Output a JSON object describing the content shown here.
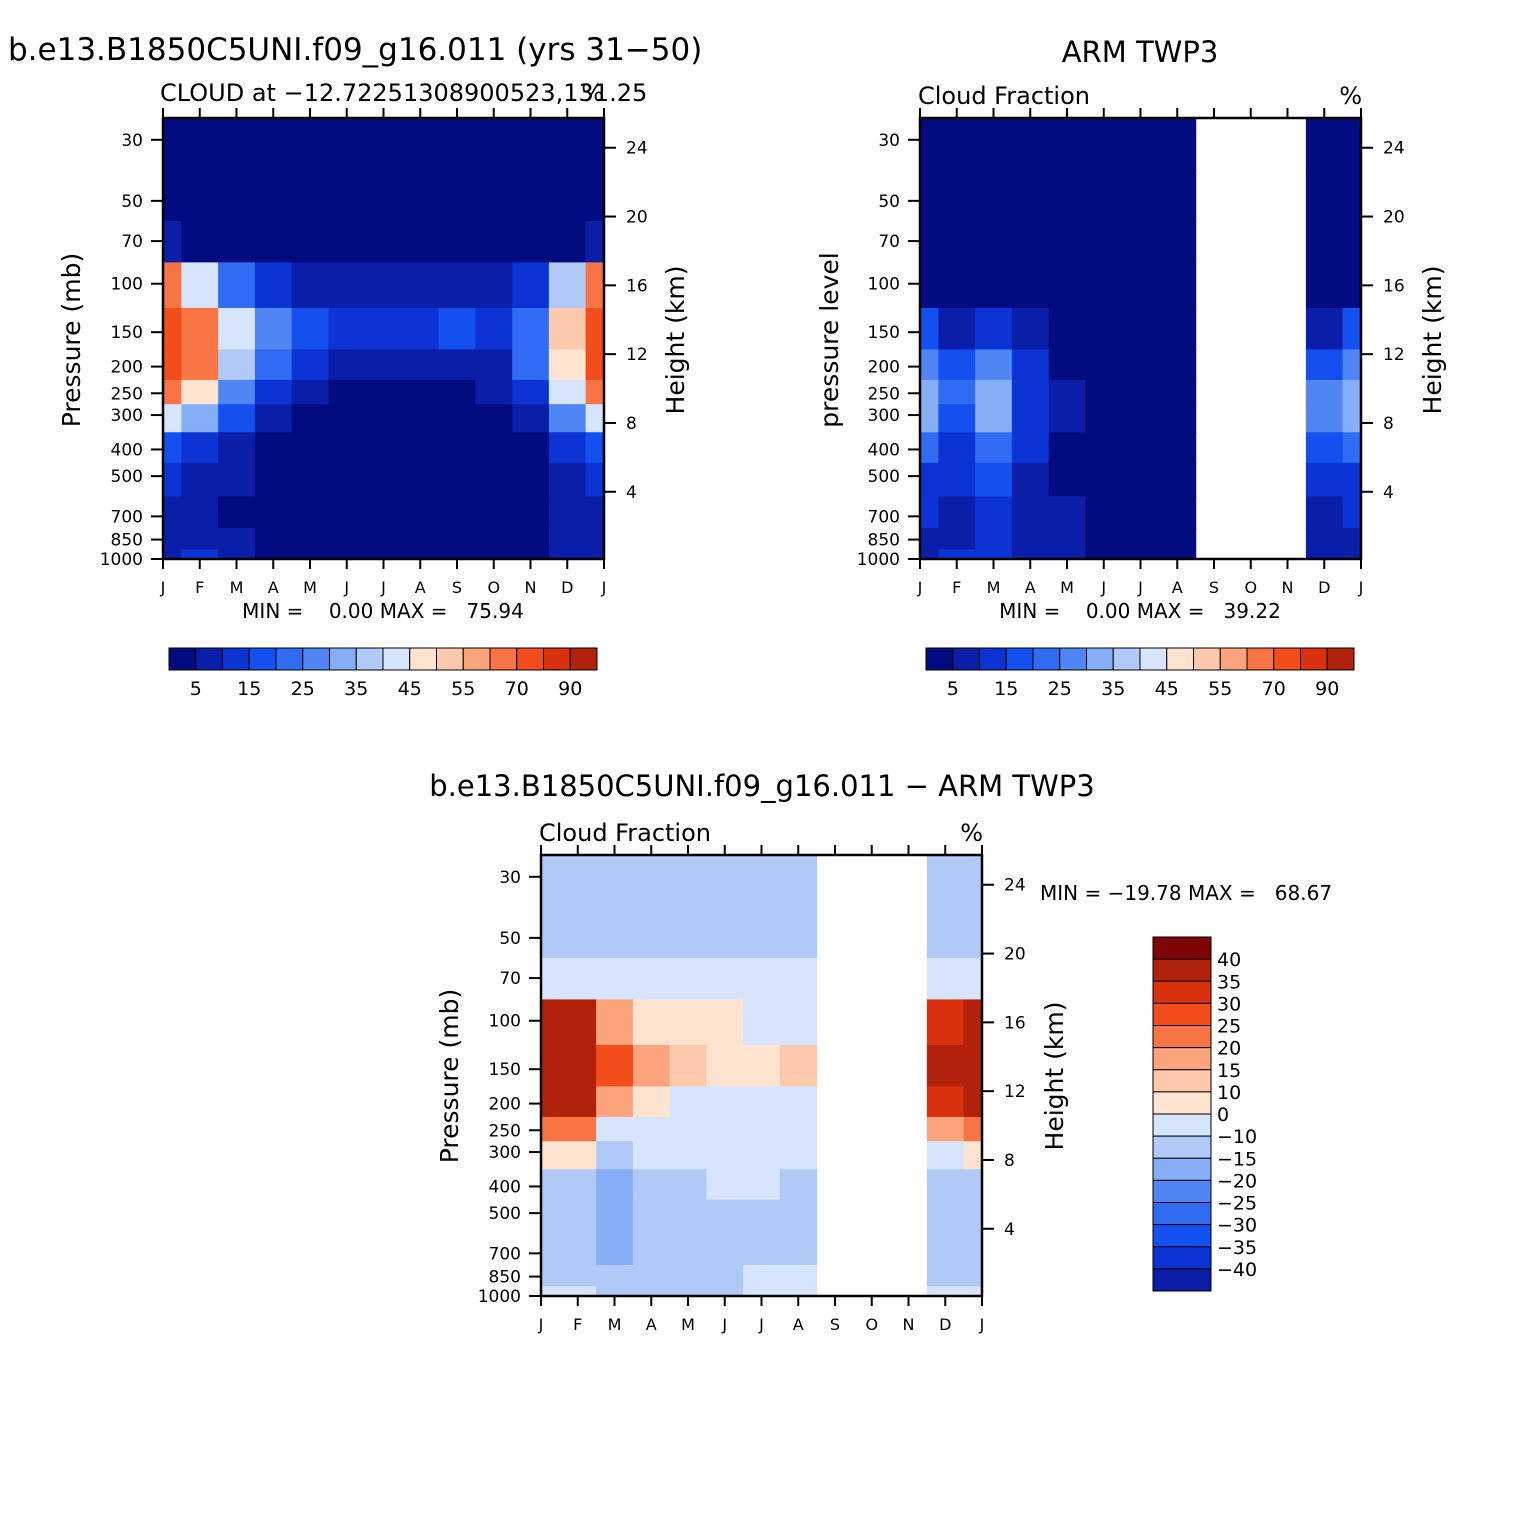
{
  "page": {
    "top_left_title": "b.e13.B1850C5UNI.f09_g16.011 (yrs 31−50)",
    "top_right_title": "ARM TWP3",
    "bottom_title": "b.e13.B1850C5UNI.f09_g16.011 − ARM TWP3"
  },
  "panels": [
    {
      "id": "model",
      "subtitle_left": "CLOUD at −12.72251308900523,131.25",
      "subtitle_right": "%",
      "ylabel": "Pressure (mb)",
      "y2label": "Height (km)",
      "minmax": "MIN =    0.00 MAX =   75.94"
    },
    {
      "id": "obs",
      "subtitle_left": "Cloud Fraction",
      "subtitle_right": "%",
      "ylabel": "pressure level",
      "y2label": "Height (km)",
      "minmax": "MIN =    0.00 MAX =   39.22"
    },
    {
      "id": "diff",
      "subtitle_left": "Cloud Fraction",
      "subtitle_right": "%",
      "ylabel": "Pressure (mb)",
      "y2label": "Height (km)",
      "minmax": "MIN = −19.78 MAX =   68.67"
    }
  ],
  "chart_data": [
    {
      "type": "heatmap",
      "title": "b.e13.B1850C5UNI.f09_g16.011 (yrs 31−50)",
      "subtitle": "CLOUD at −12.72251308900523,131.25",
      "units": "%",
      "xlabel": "",
      "ylabel": "Pressure (mb)",
      "y2label": "Height (km)",
      "x_ticks": [
        "J",
        "F",
        "M",
        "A",
        "M",
        "J",
        "J",
        "A",
        "S",
        "O",
        "N",
        "D",
        "J"
      ],
      "y_ticks": [
        30,
        50,
        70,
        100,
        150,
        200,
        250,
        300,
        400,
        500,
        700,
        850,
        1000
      ],
      "y2_ticks": [
        4,
        8,
        12,
        16,
        20,
        24
      ],
      "ylim": [
        1000,
        25
      ],
      "y_scale": "log",
      "levels": [
        5,
        10,
        15,
        20,
        25,
        30,
        35,
        40,
        45,
        50,
        55,
        60,
        70,
        80,
        90
      ],
      "colorbar_labels": [
        "5",
        "15",
        "25",
        "35",
        "45",
        "55",
        "70",
        "90"
      ],
      "colors": [
        "#020b80",
        "#0a1ea8",
        "#0c34d4",
        "#1450f0",
        "#2f6cf2",
        "#4f86f4",
        "#86aef7",
        "#b1c9f7",
        "#d6e5fb",
        "#fde3d0",
        "#fcc9ac",
        "#fba47c",
        "#f97444",
        "#f24d1a",
        "#d9300d",
        "#b2210b",
        "#7e0505"
      ],
      "columns": [
        "Jan",
        "Feb",
        "Mar",
        "Apr",
        "May",
        "Jun",
        "Jul",
        "Aug",
        "Sep",
        "Oct",
        "Nov",
        "Dec",
        "Jan"
      ],
      "rows_hPa": [
        30,
        50,
        70,
        100,
        150,
        200,
        250,
        300,
        400,
        500,
        700,
        850,
        1000
      ],
      "values": [
        [
          1,
          1,
          1,
          1,
          1,
          1,
          1,
          1,
          1,
          1,
          1,
          1,
          1
        ],
        [
          1,
          1,
          1,
          1,
          1,
          1,
          1,
          1,
          1,
          1,
          1,
          1,
          1
        ],
        [
          6,
          4,
          2,
          1,
          1,
          1,
          1,
          1,
          1,
          1,
          1,
          3,
          6
        ],
        [
          62,
          40,
          20,
          10,
          7,
          8,
          6,
          7,
          8,
          8,
          12,
          35,
          62
        ],
        [
          72,
          60,
          40,
          25,
          15,
          12,
          10,
          14,
          15,
          14,
          22,
          50,
          72
        ],
        [
          72,
          60,
          38,
          22,
          12,
          9,
          6,
          8,
          9,
          9,
          20,
          48,
          72
        ],
        [
          60,
          45,
          28,
          14,
          7,
          3,
          2,
          3,
          4,
          5,
          12,
          40,
          60
        ],
        [
          40,
          30,
          18,
          9,
          4,
          2,
          1,
          2,
          2,
          3,
          9,
          28,
          40
        ],
        [
          18,
          12,
          7,
          3,
          1,
          1,
          1,
          1,
          1,
          1,
          3,
          12,
          18
        ],
        [
          10,
          8,
          5,
          2,
          1,
          1,
          1,
          1,
          1,
          1,
          2,
          8,
          10
        ],
        [
          6,
          6,
          3,
          2,
          1,
          1,
          1,
          1,
          1,
          1,
          2,
          5,
          6
        ],
        [
          7,
          8,
          6,
          3,
          1,
          1,
          1,
          1,
          1,
          1,
          2,
          6,
          7
        ],
        [
          9,
          11,
          8,
          4,
          2,
          2,
          2,
          2,
          2,
          2,
          3,
          7,
          9
        ]
      ],
      "min": 0.0,
      "max": 75.94
    },
    {
      "type": "heatmap",
      "title": "ARM TWP3",
      "subtitle": "Cloud Fraction",
      "units": "%",
      "xlabel": "",
      "ylabel": "pressure level",
      "y2label": "Height (km)",
      "x_ticks": [
        "J",
        "F",
        "M",
        "A",
        "M",
        "J",
        "J",
        "A",
        "S",
        "O",
        "N",
        "D",
        "J"
      ],
      "y_ticks": [
        30,
        50,
        70,
        100,
        150,
        200,
        250,
        300,
        400,
        500,
        700,
        850,
        1000
      ],
      "y2_ticks": [
        4,
        8,
        12,
        16,
        20,
        24
      ],
      "ylim": [
        1000,
        25
      ],
      "y_scale": "log",
      "missing_months": [
        "Sep-Nov"
      ],
      "levels": [
        5,
        10,
        15,
        20,
        25,
        30,
        35,
        40,
        45,
        50,
        55,
        60,
        70,
        80,
        90
      ],
      "colorbar_labels": [
        "5",
        "15",
        "25",
        "35",
        "45",
        "55",
        "70",
        "90"
      ],
      "colors": [
        "#020b80",
        "#0a1ea8",
        "#0c34d4",
        "#1450f0",
        "#2f6cf2",
        "#4f86f4",
        "#86aef7",
        "#b1c9f7",
        "#d6e5fb",
        "#fde3d0",
        "#fcc9ac",
        "#fba47c",
        "#f97444",
        "#f24d1a",
        "#d9300d",
        "#b2210b",
        "#7e0505"
      ],
      "columns": [
        "Jan",
        "Feb",
        "Mar",
        "Apr",
        "May",
        "Jun",
        "Jul",
        "Aug",
        "Sep",
        "Oct",
        "Nov",
        "Dec",
        "Jan"
      ],
      "rows_hPa": [
        30,
        50,
        70,
        100,
        150,
        200,
        250,
        300,
        400,
        500,
        700,
        850,
        1000
      ],
      "values": [
        [
          1,
          1,
          1,
          1,
          1,
          1,
          1,
          1,
          null,
          null,
          null,
          1,
          1
        ],
        [
          1,
          1,
          1,
          1,
          1,
          1,
          1,
          1,
          null,
          null,
          null,
          1,
          1
        ],
        [
          1,
          1,
          1,
          1,
          1,
          1,
          1,
          1,
          null,
          null,
          null,
          1,
          1
        ],
        [
          4,
          3,
          4,
          2,
          1,
          1,
          1,
          1,
          null,
          null,
          null,
          2,
          4
        ],
        [
          15,
          9,
          12,
          7,
          2,
          1,
          1,
          1,
          null,
          null,
          null,
          8,
          15
        ],
        [
          28,
          17,
          25,
          12,
          4,
          1,
          1,
          1,
          null,
          null,
          null,
          18,
          28
        ],
        [
          34,
          20,
          34,
          14,
          5,
          1,
          1,
          1,
          null,
          null,
          null,
          25,
          34
        ],
        [
          32,
          19,
          32,
          13,
          5,
          1,
          1,
          1,
          null,
          null,
          null,
          26,
          32
        ],
        [
          22,
          14,
          24,
          11,
          4,
          1,
          1,
          1,
          null,
          null,
          null,
          18,
          22
        ],
        [
          14,
          11,
          18,
          9,
          4,
          1,
          1,
          1,
          null,
          null,
          null,
          12,
          14
        ],
        [
          10,
          9,
          14,
          8,
          5,
          2,
          1,
          1,
          null,
          null,
          null,
          7,
          10
        ],
        [
          9,
          9,
          13,
          9,
          6,
          3,
          1,
          1,
          null,
          null,
          null,
          5,
          9
        ],
        [
          9,
          10,
          12,
          9,
          6,
          3,
          2,
          1,
          null,
          null,
          null,
          5,
          9
        ]
      ],
      "min": 0.0,
      "max": 39.22
    },
    {
      "type": "heatmap",
      "title": "b.e13.B1850C5UNI.f09_g16.011 − ARM TWP3",
      "subtitle": "Cloud Fraction",
      "units": "%",
      "xlabel": "",
      "ylabel": "Pressure (mb)",
      "y2label": "Height (km)",
      "x_ticks": [
        "J",
        "F",
        "M",
        "A",
        "M",
        "J",
        "J",
        "A",
        "S",
        "O",
        "N",
        "D",
        "J"
      ],
      "y_ticks": [
        30,
        50,
        70,
        100,
        150,
        200,
        250,
        300,
        400,
        500,
        700,
        850,
        1000
      ],
      "y2_ticks": [
        4,
        8,
        12,
        16,
        20,
        24
      ],
      "ylim": [
        1000,
        25
      ],
      "y_scale": "log",
      "missing_months": [
        "Sep-Nov"
      ],
      "levels": [
        -40,
        -35,
        -30,
        -25,
        -20,
        -15,
        -10,
        0,
        10,
        15,
        20,
        25,
        30,
        35,
        40
      ],
      "colorbar_labels": [
        "40",
        "35",
        "30",
        "25",
        "20",
        "15",
        "10",
        "0",
        "−10",
        "−15",
        "−20",
        "−25",
        "−30",
        "−35",
        "−40"
      ],
      "colors": [
        "#020b80",
        "#0a1ea8",
        "#0c34d4",
        "#1450f0",
        "#2f6cf2",
        "#4f86f4",
        "#86aef7",
        "#b1c9f7",
        "#d6e5fb",
        "#fde3d0",
        "#fcc9ac",
        "#fba47c",
        "#f97444",
        "#f24d1a",
        "#d9300d",
        "#b2210b",
        "#7e0505"
      ],
      "columns": [
        "Jan",
        "Feb",
        "Mar",
        "Apr",
        "May",
        "Jun",
        "Jul",
        "Aug",
        "Sep",
        "Oct",
        "Nov",
        "Dec",
        "Jan"
      ],
      "rows_hPa": [
        30,
        50,
        70,
        100,
        150,
        200,
        250,
        300,
        400,
        500,
        700,
        850,
        1000
      ],
      "values": [
        [
          -1,
          -1,
          -1,
          -1,
          -1,
          -1,
          -1,
          -1,
          null,
          null,
          null,
          -1,
          -1
        ],
        [
          -1,
          -1,
          -1,
          -1,
          -1,
          -1,
          -1,
          -1,
          null,
          null,
          null,
          -1,
          -1
        ],
        [
          5,
          3,
          1,
          1,
          1,
          1,
          1,
          1,
          null,
          null,
          null,
          2,
          5
        ],
        [
          58,
          40,
          20,
          12,
          10,
          11,
          8,
          9,
          null,
          null,
          null,
          35,
          58
        ],
        [
          60,
          52,
          34,
          22,
          15,
          12,
          12,
          15,
          null,
          null,
          null,
          45,
          60
        ],
        [
          46,
          44,
          22,
          12,
          8,
          8,
          6,
          8,
          null,
          null,
          null,
          35,
          46
        ],
        [
          28,
          26,
          8,
          5,
          3,
          3,
          2,
          3,
          null,
          null,
          null,
          20,
          28
        ],
        [
          10,
          12,
          -2,
          2,
          2,
          2,
          1,
          2,
          null,
          null,
          null,
          4,
          10
        ],
        [
          -3,
          -4,
          -12,
          -3,
          -2,
          1,
          1,
          -2,
          null,
          null,
          null,
          -5,
          -3
        ],
        [
          -4,
          -3,
          -14,
          -5,
          -3,
          -1,
          -1,
          -1,
          null,
          null,
          null,
          -4,
          -4
        ],
        [
          -4,
          -3,
          -13,
          -4,
          -2,
          -1,
          -1,
          -1,
          null,
          null,
          null,
          -2,
          -4
        ],
        [
          -2,
          -1,
          -9,
          -3,
          -3,
          -1,
          1,
          1,
          null,
          null,
          null,
          -1,
          -2
        ],
        [
          0,
          2,
          -2,
          -2,
          -2,
          -1,
          0,
          1,
          null,
          null,
          null,
          1,
          0
        ]
      ],
      "min": -19.78,
      "max": 68.67
    }
  ]
}
